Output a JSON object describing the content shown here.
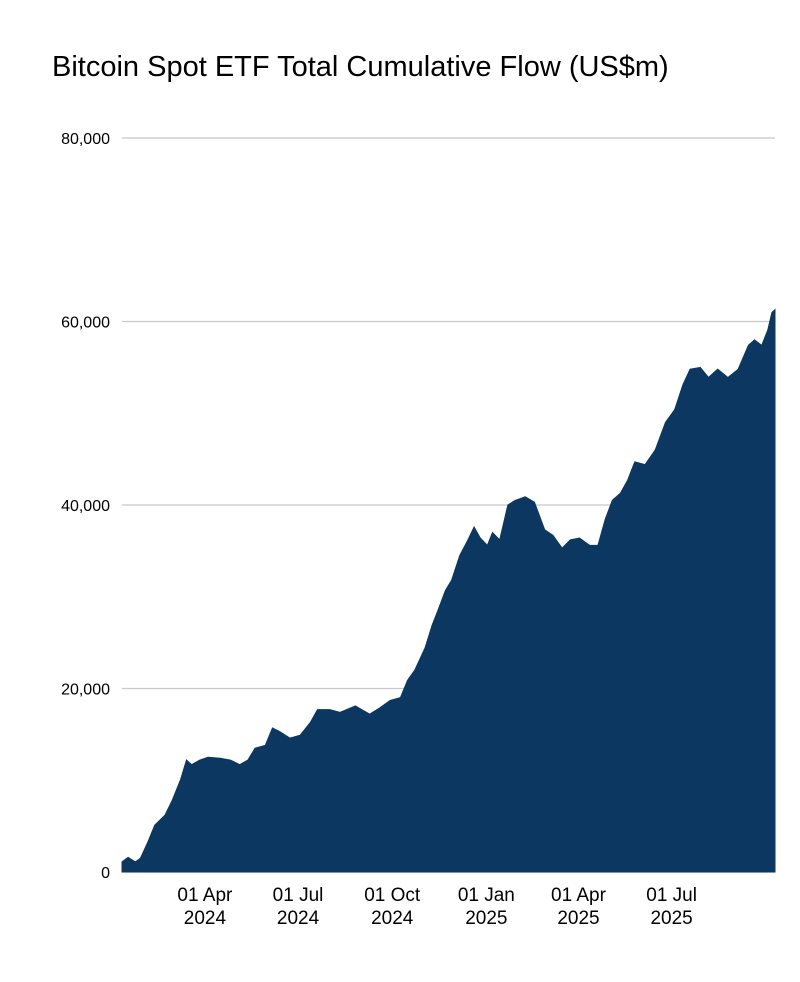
{
  "chart_data": {
    "type": "area",
    "title": "Bitcoin Spot ETF Total Cumulative Flow (US$m)",
    "color": "#0b3761",
    "grid": true,
    "x": [
      "2024-01-11",
      "2024-01-17",
      "2024-01-24",
      "2024-01-29",
      "2024-02-05",
      "2024-02-12",
      "2024-02-22",
      "2024-02-29",
      "2024-03-08",
      "2024-03-14",
      "2024-03-19",
      "2024-03-27",
      "2024-04-04",
      "2024-04-16",
      "2024-04-26",
      "2024-05-05",
      "2024-05-13",
      "2024-05-20",
      "2024-05-30",
      "2024-06-06",
      "2024-06-13",
      "2024-06-23",
      "2024-07-03",
      "2024-07-13",
      "2024-07-20",
      "2024-08-01",
      "2024-08-11",
      "2024-08-26",
      "2024-09-09",
      "2024-09-19",
      "2024-09-29",
      "2024-10-09",
      "2024-10-16",
      "2024-10-23",
      "2024-11-02",
      "2024-11-09",
      "2024-11-15",
      "2024-11-22",
      "2024-11-28",
      "2024-12-06",
      "2024-12-14",
      "2024-12-20",
      "2024-12-26",
      "2025-01-02",
      "2025-01-07",
      "2025-01-14",
      "2025-01-22",
      "2025-01-29",
      "2025-02-08",
      "2025-02-17",
      "2025-02-27",
      "2025-03-07",
      "2025-03-16",
      "2025-03-24",
      "2025-04-02",
      "2025-04-12",
      "2025-04-20",
      "2025-04-27",
      "2025-05-04",
      "2025-05-12",
      "2025-05-19",
      "2025-05-26",
      "2025-06-05",
      "2025-06-15",
      "2025-06-25",
      "2025-07-04",
      "2025-07-12",
      "2025-07-19",
      "2025-07-29",
      "2025-08-06",
      "2025-08-15",
      "2025-08-25",
      "2025-09-04",
      "2025-09-14",
      "2025-09-20",
      "2025-09-27",
      "2025-10-03",
      "2025-10-07",
      "2025-10-10"
    ],
    "values": [
      1100,
      1600,
      1100,
      1500,
      3200,
      5100,
      6200,
      7800,
      10000,
      12200,
      11700,
      12200,
      12500,
      12400,
      12200,
      11700,
      12200,
      13500,
      13800,
      15700,
      15300,
      14600,
      14900,
      16300,
      17700,
      17700,
      17400,
      18100,
      17200,
      17900,
      18700,
      19000,
      20900,
      22000,
      24400,
      26900,
      28600,
      30700,
      31800,
      34500,
      36200,
      37600,
      36400,
      35600,
      37000,
      36200,
      40000,
      40500,
      40900,
      40300,
      37300,
      36700,
      35300,
      36200,
      36400,
      35600,
      35600,
      38400,
      40500,
      41300,
      42700,
      44700,
      44400,
      46000,
      49000,
      50400,
      53100,
      54800,
      55000,
      53900,
      54800,
      53900,
      54800,
      57400,
      58000,
      57400,
      59100,
      61000,
      61300
    ],
    "xlim": [
      "2024-01-11",
      "2025-10-10"
    ],
    "xticks": [
      {
        "value": "2024-04-01",
        "label": "01 Apr 2024"
      },
      {
        "value": "2024-07-01",
        "label": "01 Jul 2024"
      },
      {
        "value": "2024-10-01",
        "label": "01 Oct 2024"
      },
      {
        "value": "2025-01-01",
        "label": "01 Jan 2025"
      },
      {
        "value": "2025-04-01",
        "label": "01 Apr 2025"
      },
      {
        "value": "2025-07-01",
        "label": "01 Jul 2025"
      }
    ],
    "ylim": [
      0,
      80000
    ],
    "yticks": [
      0,
      {
        "value": 20000,
        "label": "20,000"
      },
      {
        "value": 40000,
        "label": "40,000"
      },
      {
        "value": 60000,
        "label": "60,000"
      },
      {
        "value": 80000,
        "label": "80,000"
      }
    ]
  }
}
